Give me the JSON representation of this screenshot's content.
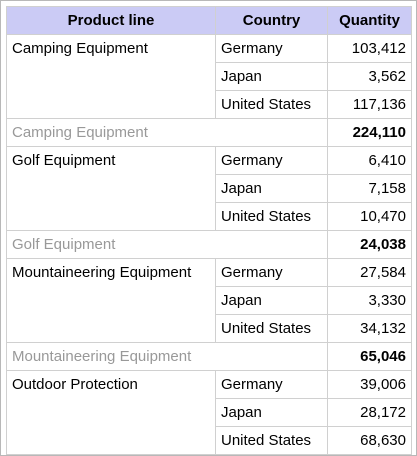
{
  "table": {
    "columns": [
      "Product line",
      "Country",
      "Quantity"
    ],
    "groups": [
      {
        "product": "Camping Equipment",
        "rows": [
          [
            "Germany",
            "103,412"
          ],
          [
            "Japan",
            "3,562"
          ],
          [
            "United States",
            "117,136"
          ]
        ],
        "total_label": "Camping Equipment",
        "total": "224,110"
      },
      {
        "product": "Golf Equipment",
        "rows": [
          [
            "Germany",
            "6,410"
          ],
          [
            "Japan",
            "7,158"
          ],
          [
            "United States",
            "10,470"
          ]
        ],
        "total_label": "Golf Equipment",
        "total": "24,038"
      },
      {
        "product": "Mountaineering Equipment",
        "rows": [
          [
            "Germany",
            "27,584"
          ],
          [
            "Japan",
            "3,330"
          ],
          [
            "United States",
            "34,132"
          ]
        ],
        "total_label": "Mountaineering Equipment",
        "total": "65,046"
      },
      {
        "product": "Outdoor Protection",
        "rows": [
          [
            "Germany",
            "39,006"
          ],
          [
            "Japan",
            "28,172"
          ],
          [
            "United States",
            "68,630"
          ]
        ]
      }
    ]
  }
}
